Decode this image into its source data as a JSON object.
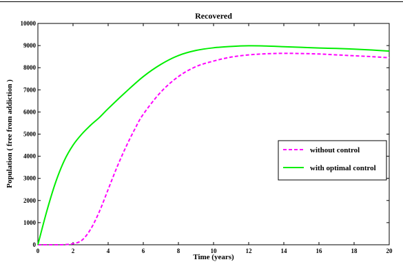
{
  "chart_data": {
    "type": "line",
    "title": "Recovered",
    "xlabel": "Time (years)",
    "ylabel": "Population ( free from addiction )",
    "xlim": [
      0,
      20
    ],
    "ylim": [
      0,
      10000
    ],
    "xticks": [
      0,
      2,
      4,
      6,
      8,
      10,
      12,
      14,
      16,
      18,
      20
    ],
    "yticks": [
      0,
      1000,
      2000,
      3000,
      4000,
      5000,
      6000,
      7000,
      8000,
      9000,
      10000
    ],
    "grid": false,
    "legend_position": "right",
    "series": [
      {
        "name": "without control",
        "color": "#ff00ff",
        "dash": true,
        "x": [
          0,
          1,
          1.5,
          2,
          2.5,
          3,
          3.5,
          4,
          4.5,
          5,
          5.5,
          6,
          7,
          8,
          9,
          10,
          11,
          12,
          13,
          14,
          15,
          16,
          17,
          18,
          19,
          20
        ],
        "y": [
          0,
          0,
          5,
          50,
          200,
          700,
          1500,
          2500,
          3500,
          4400,
          5200,
          5900,
          6900,
          7600,
          8050,
          8300,
          8480,
          8580,
          8630,
          8650,
          8640,
          8620,
          8580,
          8540,
          8500,
          8450
        ]
      },
      {
        "name": "with optimal control",
        "color": "#00ee00",
        "dash": false,
        "x": [
          0,
          0.5,
          1,
          1.5,
          2,
          2.5,
          3,
          3.5,
          4,
          5,
          6,
          7,
          8,
          9,
          10,
          11,
          12,
          13,
          14,
          15,
          16,
          17,
          18,
          19,
          20
        ],
        "y": [
          0,
          1500,
          2800,
          3800,
          4500,
          5000,
          5400,
          5750,
          6150,
          6900,
          7600,
          8150,
          8550,
          8780,
          8900,
          8960,
          8990,
          8980,
          8950,
          8920,
          8890,
          8870,
          8840,
          8800,
          8750
        ]
      }
    ]
  }
}
